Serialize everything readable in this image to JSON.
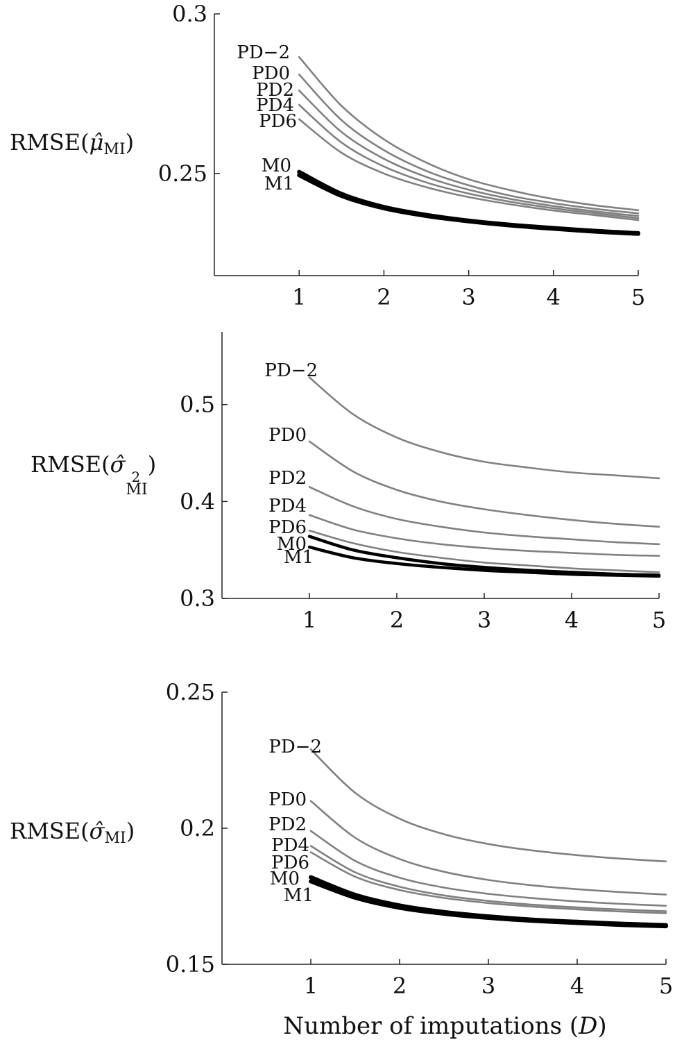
{
  "chart_data": [
    {
      "type": "line",
      "ylabel_text": "RMSE(",
      "ylabel_symbol": "μ̂",
      "ylabel_subscript": "MI",
      "ylabel_close": ")",
      "xlim": [
        0.0,
        5.0
      ],
      "ylim": [
        0.218,
        0.3
      ],
      "yticks": [
        0.25,
        0.3
      ],
      "ytick_labels": [
        "0.25",
        "0.3"
      ],
      "xticks": [
        1,
        2,
        3,
        4,
        5
      ],
      "xtick_labels": [
        "1",
        "2",
        "3",
        "4",
        "5"
      ],
      "x": [
        1,
        1.5,
        2,
        2.5,
        3,
        3.5,
        4,
        4.5,
        5
      ],
      "series": [
        {
          "name": "PD−2",
          "values": [
            0.2865,
            0.2712,
            0.2607,
            0.2534,
            0.2482,
            0.2447,
            0.242,
            0.24,
            0.2385
          ],
          "color": "#808080",
          "width": 2.6
        },
        {
          "name": "PD0",
          "values": [
            0.281,
            0.2667,
            0.2573,
            0.2508,
            0.2463,
            0.243,
            0.2407,
            0.2389,
            0.2375
          ],
          "color": "#808080",
          "width": 2.6
        },
        {
          "name": "PD2",
          "values": [
            0.276,
            0.263,
            0.2546,
            0.2489,
            0.2449,
            0.242,
            0.2398,
            0.2381,
            0.2367
          ],
          "color": "#808080",
          "width": 2.6
        },
        {
          "name": "PD4",
          "values": [
            0.2715,
            0.2597,
            0.2522,
            0.2472,
            0.2437,
            0.2411,
            0.2391,
            0.2375,
            0.236
          ],
          "color": "#808080",
          "width": 2.6
        },
        {
          "name": "PD6",
          "values": [
            0.267,
            0.2565,
            0.25,
            0.2457,
            0.2426,
            0.2403,
            0.2384,
            0.2369,
            0.2354
          ],
          "color": "#808080",
          "width": 2.6
        },
        {
          "name": "M0",
          "values": [
            0.2505,
            0.2436,
            0.2395,
            0.237,
            0.2352,
            0.2339,
            0.2329,
            0.232,
            0.2313
          ],
          "color": "#000000",
          "width": 6
        },
        {
          "name": "M1",
          "values": [
            0.2495,
            0.243,
            0.2391,
            0.2367,
            0.235,
            0.2337,
            0.2327,
            0.2318,
            0.2311
          ],
          "color": "#000000",
          "width": 6
        }
      ]
    },
    {
      "type": "line",
      "ylabel_text": "RMSE(",
      "ylabel_symbol": "σ̂",
      "ylabel_superscript": "2",
      "ylabel_subscript": "MI",
      "ylabel_close": ")",
      "xlim": [
        0.0,
        5.0
      ],
      "ylim": [
        0.3,
        0.575
      ],
      "yticks": [
        0.3,
        0.4,
        0.5
      ],
      "ytick_labels": [
        "0.3",
        "0.4",
        "0.5"
      ],
      "xticks": [
        1,
        2,
        3,
        4,
        5
      ],
      "xtick_labels": [
        "1",
        "2",
        "3",
        "4",
        "5"
      ],
      "x": [
        1,
        1.5,
        2,
        2.5,
        3,
        3.5,
        4,
        4.5,
        5
      ],
      "series": [
        {
          "name": "PD−2",
          "values": [
            0.528,
            0.49,
            0.466,
            0.451,
            0.441,
            0.435,
            0.43,
            0.427,
            0.424
          ],
          "color": "#808080",
          "width": 2.6
        },
        {
          "name": "PD0",
          "values": [
            0.462,
            0.431,
            0.412,
            0.4,
            0.392,
            0.386,
            0.381,
            0.377,
            0.374
          ],
          "color": "#808080",
          "width": 2.6
        },
        {
          "name": "PD2",
          "values": [
            0.415,
            0.395,
            0.382,
            0.374,
            0.368,
            0.364,
            0.361,
            0.358,
            0.356
          ],
          "color": "#808080",
          "width": 2.6
        },
        {
          "name": "PD4",
          "values": [
            0.386,
            0.371,
            0.362,
            0.356,
            0.352,
            0.349,
            0.347,
            0.345,
            0.344
          ],
          "color": "#808080",
          "width": 2.6
        },
        {
          "name": "PD6",
          "values": [
            0.37,
            0.357,
            0.348,
            0.342,
            0.337,
            0.334,
            0.331,
            0.329,
            0.327
          ],
          "color": "#808080",
          "width": 2.6
        },
        {
          "name": "M0",
          "values": [
            0.364,
            0.35,
            0.342,
            0.336,
            0.332,
            0.329,
            0.327,
            0.325,
            0.324
          ],
          "color": "#000000",
          "width": 4.5
        },
        {
          "name": "M1",
          "values": [
            0.353,
            0.342,
            0.336,
            0.332,
            0.329,
            0.327,
            0.325,
            0.324,
            0.323
          ],
          "color": "#000000",
          "width": 4.5
        }
      ]
    },
    {
      "type": "line",
      "ylabel_text": "RMSE(",
      "ylabel_symbol": "σ̂",
      "ylabel_subscript": "MI",
      "ylabel_close": ")",
      "xlim": [
        0.0,
        5.0
      ],
      "ylim": [
        0.15,
        0.25
      ],
      "yticks": [
        0.15,
        0.2,
        0.25
      ],
      "ytick_labels": [
        "0.15",
        "0.2",
        "0.25"
      ],
      "xticks": [
        1,
        2,
        3,
        4,
        5
      ],
      "xtick_labels": [
        "1",
        "2",
        "3",
        "4",
        "5"
      ],
      "xlabel_text": "Number of imputations (",
      "xlabel_symbol": "D",
      "xlabel_close": ")",
      "x": [
        1,
        1.5,
        2,
        2.5,
        3,
        3.5,
        4,
        4.5,
        5
      ],
      "series": [
        {
          "name": "PD−2",
          "values": [
            0.229,
            0.213,
            0.2035,
            0.1978,
            0.1942,
            0.1918,
            0.1901,
            0.1888,
            0.1878
          ],
          "color": "#808080",
          "width": 2.6
        },
        {
          "name": "PD0",
          "values": [
            0.21,
            0.1965,
            0.1887,
            0.184,
            0.181,
            0.179,
            0.1776,
            0.1765,
            0.1756
          ],
          "color": "#808080",
          "width": 2.6
        },
        {
          "name": "PD2",
          "values": [
            0.199,
            0.188,
            0.1818,
            0.1782,
            0.1759,
            0.1743,
            0.1731,
            0.1722,
            0.1715
          ],
          "color": "#808080",
          "width": 2.6
        },
        {
          "name": "PD4",
          "values": [
            0.1935,
            0.1838,
            0.1785,
            0.1753,
            0.1733,
            0.1719,
            0.1709,
            0.1701,
            0.1695
          ],
          "color": "#808080",
          "width": 2.6
        },
        {
          "name": "PD6",
          "values": [
            0.1912,
            0.1822,
            0.1773,
            0.1744,
            0.1725,
            0.1712,
            0.1702,
            0.1694,
            0.1688
          ],
          "color": "#808080",
          "width": 2.6
        },
        {
          "name": "M0",
          "values": [
            0.182,
            0.1755,
            0.1716,
            0.1692,
            0.1676,
            0.1664,
            0.1656,
            0.1649,
            0.1644
          ],
          "color": "#000000",
          "width": 6
        },
        {
          "name": "M1",
          "values": [
            0.1805,
            0.1745,
            0.1708,
            0.1686,
            0.1671,
            0.166,
            0.1652,
            0.1645,
            0.164
          ],
          "color": "#000000",
          "width": 6
        }
      ]
    }
  ]
}
